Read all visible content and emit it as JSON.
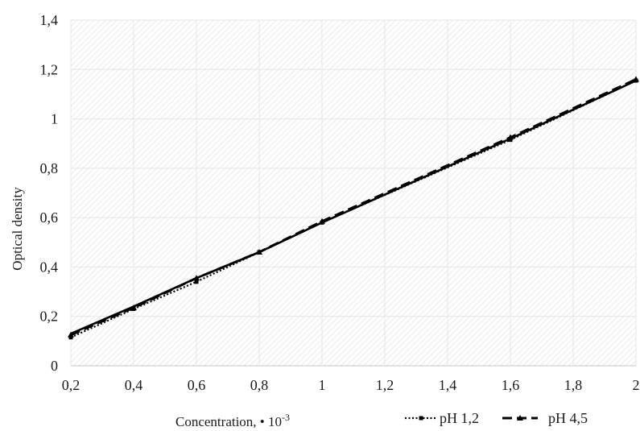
{
  "chart_data": {
    "type": "line",
    "title": "",
    "xlabel": "Concentration, • 10",
    "xlabel_superscript": "-3",
    "ylabel": "Optical density",
    "xlim": [
      0.2,
      2
    ],
    "ylim": [
      0,
      1.4
    ],
    "x_ticks": [
      "0,2",
      "0,4",
      "0,6",
      "0,8",
      "1",
      "1,2",
      "1,4",
      "1,6",
      "1,8",
      "2"
    ],
    "y_ticks": [
      "0",
      "0,2",
      "0,4",
      "0,6",
      "0,8",
      "1",
      "1,2",
      "1,4"
    ],
    "grid": true,
    "plot_background": "hatched light gray",
    "legend_position": "bottom-right",
    "x": [
      0.2,
      0.4,
      0.6,
      0.8,
      1.0,
      1.6,
      2.0
    ],
    "series": [
      {
        "name": "pH 1,2",
        "style": "dotted",
        "marker": "square",
        "color": "#000000",
        "values": [
          0.115,
          0.23,
          0.34,
          0.46,
          0.58,
          0.915,
          1.155
        ]
      },
      {
        "name": "pH 4,5",
        "style": "dashed",
        "marker": "triangle",
        "color": "#000000",
        "values": [
          0.125,
          0.235,
          0.355,
          0.46,
          0.585,
          0.925,
          1.16
        ]
      },
      {
        "name": "",
        "style": "solid",
        "marker": "none",
        "color": "#000000",
        "values": [
          0.13,
          0.24,
          0.355,
          0.46,
          0.58,
          0.92,
          1.155
        ]
      }
    ]
  }
}
